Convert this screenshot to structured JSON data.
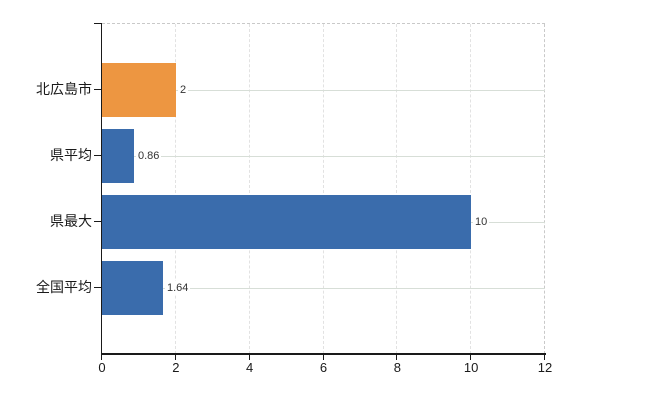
{
  "chart_data": {
    "type": "bar",
    "orientation": "horizontal",
    "categories": [
      "北広島市",
      "県平均",
      "県最大",
      "全国平均"
    ],
    "values": [
      2,
      0.86,
      10,
      1.64
    ],
    "value_labels": [
      "2",
      "0.86",
      "10",
      "1.64"
    ],
    "bar_colors": [
      "#ED9641",
      "#3A6CAC",
      "#3A6CAC",
      "#3A6CAC"
    ],
    "x_ticks": [
      "0",
      "2",
      "4",
      "6",
      "8",
      "10",
      "12"
    ],
    "x_tick_values": [
      0,
      2,
      4,
      6,
      8,
      10,
      12
    ],
    "xlim": [
      0,
      12
    ],
    "grid": true,
    "legend": false,
    "title": ""
  },
  "colors": {
    "highlight_bar": "#ED9641",
    "default_bar": "#3A6CAC",
    "axis": "#1a1a1a",
    "grid_vertical": "#e2e2e2",
    "grid_horizontal": "#d7ded7",
    "plot_border_dashed": "#c9c9c9",
    "category_text": "#1a1a1a",
    "value_text": "#333333",
    "background": "#ffffff"
  }
}
